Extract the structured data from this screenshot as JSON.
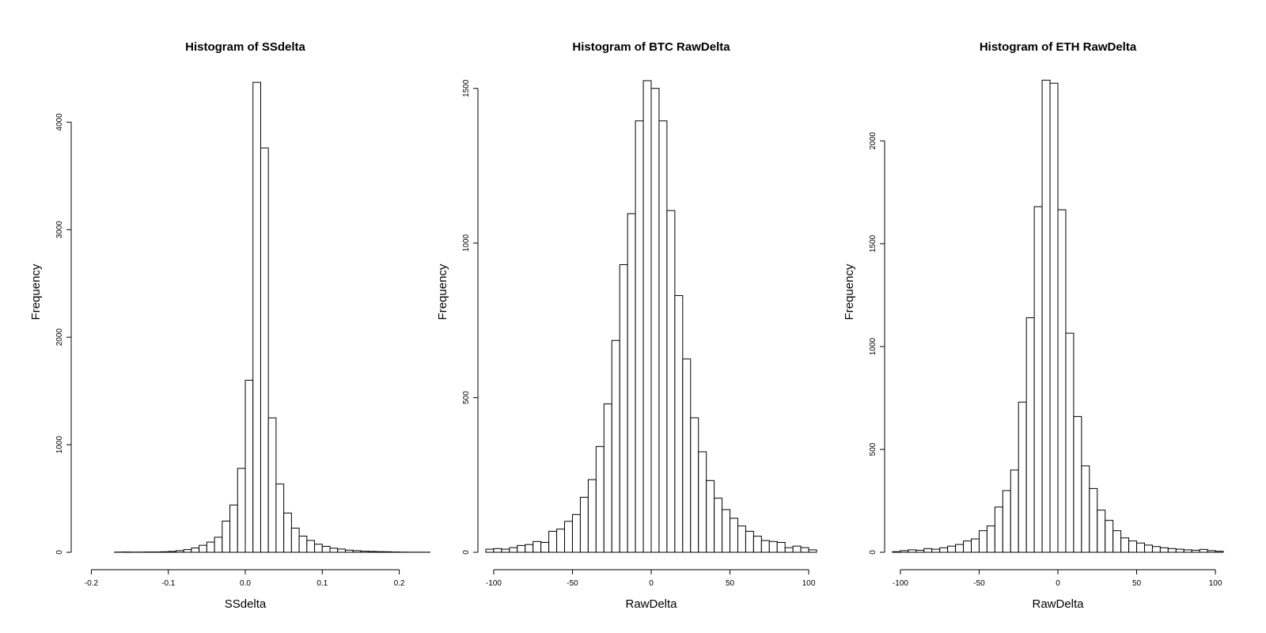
{
  "chart_data": [
    {
      "type": "bar",
      "title": "Histogram of SSdelta",
      "xlabel": "SSdelta",
      "ylabel": "Frequency",
      "xlim": [
        -0.22,
        0.22
      ],
      "ylim": [
        0,
        4400
      ],
      "x_ticks": [
        -0.2,
        -0.1,
        0.0,
        0.1,
        0.2
      ],
      "x_tick_labels": [
        "-0.2",
        "-0.1",
        "0.0",
        "0.1",
        "0.2"
      ],
      "y_ticks": [
        0,
        1000,
        2000,
        3000,
        4000
      ],
      "y_tick_labels": [
        "0",
        "1000",
        "2000",
        "3000",
        "4000"
      ],
      "bin_start": -0.2,
      "bin_width": 0.01,
      "values": [
        0,
        0,
        0,
        2,
        3,
        2,
        2,
        3,
        3,
        5,
        8,
        15,
        25,
        40,
        65,
        95,
        140,
        290,
        440,
        780,
        1600,
        4370,
        3760,
        1250,
        635,
        365,
        225,
        150,
        110,
        75,
        55,
        38,
        30,
        20,
        15,
        10,
        8,
        6,
        5,
        3,
        2,
        1,
        1,
        1
      ]
    },
    {
      "type": "bar",
      "title": "Histogram of BTC RawDelta",
      "xlabel": "RawDelta",
      "ylabel": "Frequency",
      "xlim": [
        -107,
        107
      ],
      "ylim": [
        0,
        1530
      ],
      "x_ticks": [
        -100,
        -50,
        0,
        50,
        100
      ],
      "x_tick_labels": [
        "-100",
        "-50",
        "0",
        "50",
        "100"
      ],
      "y_ticks": [
        0,
        500,
        1000,
        1500
      ],
      "y_tick_labels": [
        "0",
        "500",
        "1000",
        "1500"
      ],
      "bin_start": -105,
      "bin_width": 5,
      "values": [
        10,
        12,
        10,
        15,
        22,
        25,
        35,
        32,
        68,
        75,
        100,
        122,
        178,
        235,
        342,
        480,
        685,
        930,
        1095,
        1395,
        1525,
        1500,
        1395,
        1105,
        830,
        625,
        435,
        325,
        232,
        175,
        138,
        110,
        85,
        68,
        52,
        38,
        35,
        32,
        15,
        20,
        15,
        8
      ]
    },
    {
      "type": "bar",
      "title": "Histogram of ETH RawDelta",
      "xlabel": "RawDelta",
      "ylabel": "Frequency",
      "xlim": [
        -107,
        107
      ],
      "ylim": [
        0,
        2300
      ],
      "x_ticks": [
        -100,
        -50,
        0,
        50,
        100
      ],
      "x_tick_labels": [
        "-100",
        "-50",
        "0",
        "50",
        "100"
      ],
      "y_ticks": [
        0,
        500,
        1000,
        1500,
        2000
      ],
      "y_tick_labels": [
        "0",
        "500",
        "1000",
        "1500",
        "2000"
      ],
      "bin_start": -105,
      "bin_width": 5,
      "values": [
        3,
        8,
        12,
        10,
        18,
        15,
        22,
        30,
        38,
        55,
        65,
        105,
        128,
        220,
        300,
        400,
        730,
        1140,
        1680,
        2295,
        2280,
        1665,
        1065,
        660,
        420,
        310,
        205,
        155,
        105,
        70,
        55,
        45,
        35,
        28,
        22,
        18,
        15,
        12,
        10,
        14,
        8,
        5
      ]
    }
  ]
}
